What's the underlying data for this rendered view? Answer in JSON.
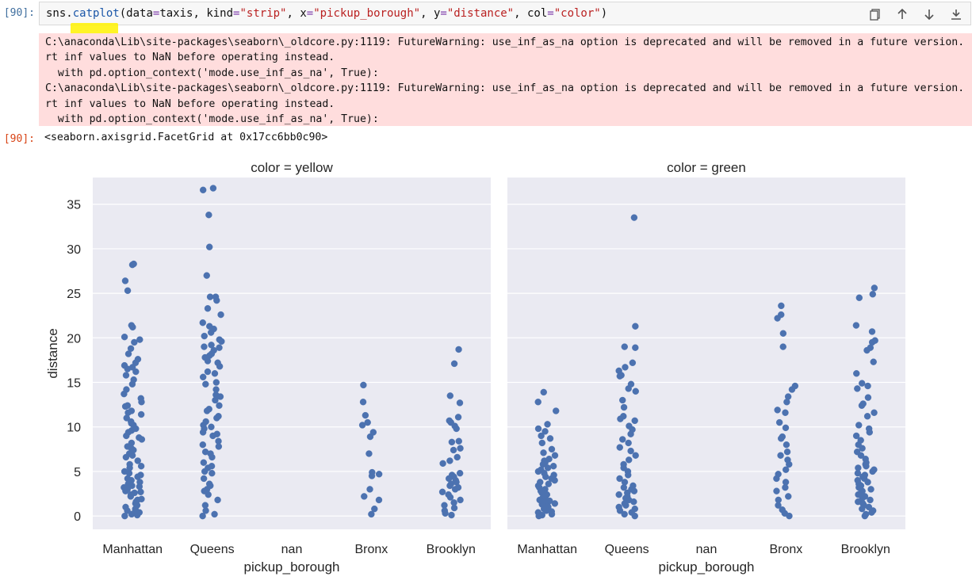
{
  "cell_input": {
    "prompt": "[90]:",
    "code_parts": [
      {
        "t": "sns.",
        "c": ""
      },
      {
        "t": "catplot",
        "c": "fn"
      },
      {
        "t": "(data",
        "c": ""
      },
      {
        "t": "=",
        "c": "eq"
      },
      {
        "t": "taxis, kind",
        "c": ""
      },
      {
        "t": "=",
        "c": "eq"
      },
      {
        "t": "\"strip\"",
        "c": "str"
      },
      {
        "t": ", x",
        "c": ""
      },
      {
        "t": "=",
        "c": "eq"
      },
      {
        "t": "\"pickup_borough\"",
        "c": "str"
      },
      {
        "t": ", y",
        "c": ""
      },
      {
        "t": "=",
        "c": "eq"
      },
      {
        "t": "\"distance\"",
        "c": "str"
      },
      {
        "t": ", col",
        "c": ""
      },
      {
        "t": "=",
        "c": "eq"
      },
      {
        "t": "\"color\"",
        "c": "str"
      },
      {
        "t": ")",
        "c": ""
      }
    ]
  },
  "toolbar": {
    "icons": [
      "copy-icon",
      "arrow-up-icon",
      "arrow-down-icon",
      "insert-below-icon"
    ]
  },
  "stderr_lines": [
    "C:\\anaconda\\Lib\\site-packages\\seaborn\\_oldcore.py:1119: FutureWarning: use_inf_as_na option is deprecated and will be removed in a future version.",
    "rt inf values to NaN before operating instead.",
    "  with pd.option_context('mode.use_inf_as_na', True):",
    "C:\\anaconda\\Lib\\site-packages\\seaborn\\_oldcore.py:1119: FutureWarning: use_inf_as_na option is deprecated and will be removed in a future version.",
    "rt inf values to NaN before operating instead.",
    "  with pd.option_context('mode.use_inf_as_na', True):"
  ],
  "output": {
    "prompt": "[90]:",
    "text": "<seaborn.axisgrid.FacetGrid at 0x17cc6bb0c90>"
  },
  "colors": {
    "marker": "#4c72b0",
    "axes_bg": "#eaeaf2",
    "grid": "#ffffff",
    "stderr_bg": "#ffdddd",
    "prompt": "#3f6e9e"
  },
  "chart_data": {
    "type": "scatter",
    "kind": "strip",
    "ylabel": "distance",
    "xlabel": "pickup_borough",
    "ylim": [
      -1.5,
      38
    ],
    "yticks": [
      0,
      5,
      10,
      15,
      20,
      25,
      30,
      35
    ],
    "categories": [
      "Manhattan",
      "Queens",
      "nan",
      "Bronx",
      "Brooklyn"
    ],
    "grid": true,
    "panels": [
      {
        "title": "color = yellow",
        "series": [
          {
            "category": "Manhattan",
            "values": [
              28.2,
              28.3,
              26.4,
              25.3,
              21.4,
              21.2,
              20.1,
              19.8,
              19.5,
              18.8,
              18.2,
              17.6,
              17.2,
              16.9,
              16.7,
              16.5,
              16.2,
              15.8,
              15.3,
              14.8,
              14.2,
              13.7,
              13.2,
              12.8,
              12.3,
              11.8,
              11.4,
              11.0,
              10.6,
              10.2,
              9.8,
              9.4,
              9.0,
              8.6,
              8.2,
              7.8,
              7.4,
              7.0,
              6.6,
              6.2,
              5.8,
              5.4,
              5.0,
              4.6,
              4.2,
              3.8,
              3.4,
              3.0,
              2.6,
              2.2,
              1.8,
              1.4,
              1.0,
              0.6,
              0.2,
              0.0,
              3.2,
              2.4,
              1.6,
              0.8,
              5.6,
              4.8,
              4.0,
              6.8,
              7.6,
              8.8,
              9.6,
              10.4,
              11.6,
              12.4,
              1.2,
              2.8,
              3.6,
              4.4,
              0.4,
              1.9,
              2.7,
              3.3,
              0.1,
              0.5
            ]
          },
          {
            "category": "Queens",
            "values": [
              36.8,
              36.6,
              33.8,
              30.2,
              27.0,
              24.6,
              24.6,
              24.2,
              23.3,
              22.6,
              21.7,
              21.3,
              21.0,
              20.6,
              20.2,
              19.6,
              19.2,
              18.9,
              18.6,
              18.2,
              17.8,
              17.2,
              16.8,
              16.2,
              15.6,
              14.8,
              14.2,
              13.6,
              13.0,
              12.4,
              11.8,
              11.2,
              10.6,
              10.2,
              9.8,
              9.4,
              9.0,
              8.4,
              7.8,
              7.2,
              6.6,
              6.0,
              5.4,
              4.8,
              4.2,
              3.6,
              3.0,
              2.4,
              1.8,
              1.2,
              0.6,
              0.0,
              0.2,
              2.8,
              3.4,
              5.0,
              5.6,
              7.0,
              8.0,
              9.2,
              10.0,
              11.0,
              12.0,
              13.4,
              15.0,
              16.0,
              17.4,
              18.0,
              19.0,
              19.8
            ]
          },
          {
            "category": "nan",
            "values": []
          },
          {
            "category": "Bronx",
            "values": [
              14.7,
              12.8,
              11.3,
              10.5,
              10.2,
              9.4,
              8.9,
              7.0,
              4.9,
              4.7,
              4.5,
              3.0,
              2.2,
              1.8,
              0.8,
              0.2
            ]
          },
          {
            "category": "Brooklyn",
            "values": [
              18.7,
              17.1,
              13.5,
              12.7,
              11.1,
              10.7,
              10.5,
              10.1,
              9.8,
              8.4,
              8.3,
              7.6,
              7.4,
              6.6,
              6.2,
              5.9,
              4.8,
              4.6,
              4.4,
              4.2,
              4.0,
              3.8,
              3.6,
              3.4,
              3.2,
              3.0,
              2.7,
              2.4,
              2.1,
              1.8,
              1.5,
              1.2,
              0.9,
              0.6,
              0.3,
              0.1
            ]
          }
        ]
      },
      {
        "title": "color = green",
        "series": [
          {
            "category": "Manhattan",
            "values": [
              13.9,
              12.8,
              11.8,
              10.3,
              9.8,
              9.5,
              9.0,
              8.7,
              8.2,
              7.5,
              7.1,
              6.8,
              6.4,
              6.0,
              5.6,
              5.2,
              4.8,
              4.4,
              4.0,
              3.6,
              3.2,
              2.8,
              2.4,
              2.0,
              1.6,
              1.2,
              0.8,
              0.4,
              0.0,
              0.2,
              0.6,
              1.0,
              1.4,
              1.8,
              2.2,
              2.6,
              3.0,
              3.4,
              3.8,
              4.2,
              4.6,
              5.0,
              5.4,
              5.8,
              6.2,
              0.1,
              0.5,
              0.9,
              1.3,
              1.7
            ]
          },
          {
            "category": "Queens",
            "values": [
              33.5,
              21.3,
              19.0,
              18.9,
              17.2,
              16.7,
              16.3,
              15.8,
              15.7,
              14.8,
              14.3,
              14.0,
              13.0,
              12.2,
              11.2,
              10.9,
              10.7,
              10.1,
              9.7,
              9.2,
              8.6,
              8.2,
              7.7,
              7.3,
              6.8,
              6.3,
              5.8,
              5.4,
              5.0,
              4.6,
              4.2,
              3.8,
              3.4,
              3.0,
              2.6,
              2.2,
              1.8,
              1.4,
              1.0,
              0.6,
              0.2,
              0.0,
              0.4,
              0.8,
              1.2,
              1.6,
              2.0,
              2.4,
              2.8,
              3.2
            ]
          },
          {
            "category": "nan",
            "values": []
          },
          {
            "category": "Bronx",
            "values": [
              23.6,
              22.6,
              22.2,
              20.5,
              19.0,
              14.6,
              14.2,
              13.4,
              12.8,
              11.9,
              11.6,
              10.5,
              9.9,
              8.9,
              8.7,
              8.0,
              7.2,
              6.8,
              6.3,
              5.8,
              5.2,
              4.7,
              4.2,
              3.8,
              3.2,
              2.8,
              2.2,
              1.8,
              1.2,
              0.7,
              0.3,
              0.0
            ]
          },
          {
            "category": "Brooklyn",
            "values": [
              25.6,
              24.9,
              24.5,
              21.4,
              20.7,
              19.7,
              19.5,
              18.9,
              18.6,
              17.3,
              16.0,
              14.9,
              14.6,
              14.3,
              13.3,
              12.6,
              12.4,
              11.6,
              11.2,
              10.2,
              9.8,
              9.4,
              9.0,
              8.5,
              8.0,
              7.6,
              7.2,
              6.8,
              6.4,
              6.0,
              5.6,
              5.2,
              4.8,
              4.4,
              4.0,
              3.6,
              3.2,
              2.8,
              2.4,
              2.0,
              1.6,
              1.2,
              0.8,
              0.4,
              0.0,
              0.2,
              0.6,
              1.0,
              1.4,
              1.8,
              2.2,
              2.6,
              3.0,
              3.4,
              3.8,
              4.2,
              4.6,
              5.0,
              5.4,
              5.8
            ]
          }
        ]
      }
    ]
  }
}
